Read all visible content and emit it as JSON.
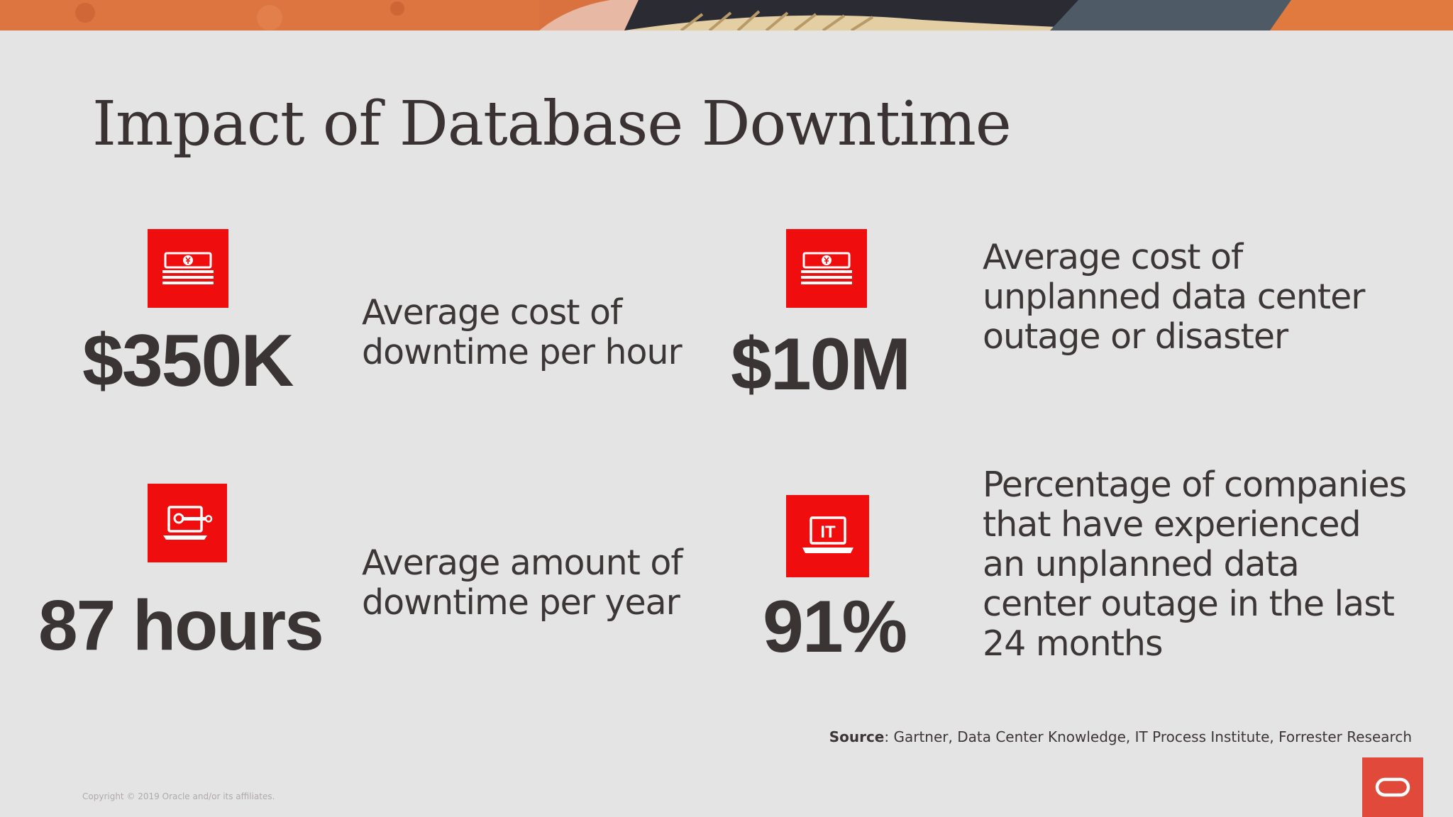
{
  "slide": {
    "title": "Impact of Database Downtime",
    "stats": [
      {
        "value": "$350K",
        "description": "Average cost of downtime per hour",
        "icon": "money-stack-icon"
      },
      {
        "value": "$10M",
        "description": "Average cost of unplanned data center outage or disaster",
        "icon": "money-stack-icon"
      },
      {
        "value": "87 hours",
        "description": "Average amount of downtime per year",
        "icon": "laptop-wrench-icon"
      },
      {
        "value": "91%",
        "description": "Percentage of companies that have experienced an unplanned data center outage in the last 24 months",
        "icon": "it-laptop-icon"
      }
    ],
    "source_label": "Source",
    "source_text": ": Gartner, Data Center Knowledge, IT Process Institute, Forrester Research",
    "copyright": "Copyright © 2019 Oracle and/or its affiliates.",
    "icon_text": "IT"
  },
  "colors": {
    "background": "#e4e4e4",
    "accent_red": "#f00d0d",
    "text_dark": "#3b3435",
    "logo_red": "#e14a3a",
    "banner_orange": "#d9723f"
  }
}
